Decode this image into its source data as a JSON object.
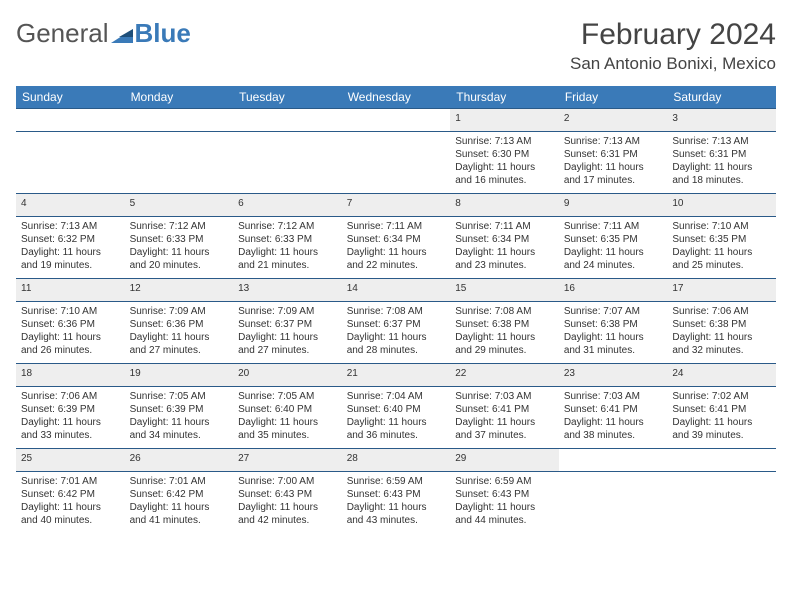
{
  "brand": {
    "part1": "General",
    "part2": "Blue"
  },
  "title": "February 2024",
  "location": "San Antonio Bonixi, Mexico",
  "colors": {
    "header_bg": "#3a7ab8",
    "header_text": "#ffffff",
    "daynum_bg": "#eeeeee",
    "border": "#2a5a88",
    "logo_blue": "#3a7ab8"
  },
  "weekdays": [
    "Sunday",
    "Monday",
    "Tuesday",
    "Wednesday",
    "Thursday",
    "Friday",
    "Saturday"
  ],
  "weeks": [
    {
      "nums": [
        "",
        "",
        "",
        "",
        "1",
        "2",
        "3"
      ],
      "cells": [
        null,
        null,
        null,
        null,
        {
          "sr": "Sunrise: 7:13 AM",
          "ss": "Sunset: 6:30 PM",
          "d1": "Daylight: 11 hours",
          "d2": "and 16 minutes."
        },
        {
          "sr": "Sunrise: 7:13 AM",
          "ss": "Sunset: 6:31 PM",
          "d1": "Daylight: 11 hours",
          "d2": "and 17 minutes."
        },
        {
          "sr": "Sunrise: 7:13 AM",
          "ss": "Sunset: 6:31 PM",
          "d1": "Daylight: 11 hours",
          "d2": "and 18 minutes."
        }
      ]
    },
    {
      "nums": [
        "4",
        "5",
        "6",
        "7",
        "8",
        "9",
        "10"
      ],
      "cells": [
        {
          "sr": "Sunrise: 7:13 AM",
          "ss": "Sunset: 6:32 PM",
          "d1": "Daylight: 11 hours",
          "d2": "and 19 minutes."
        },
        {
          "sr": "Sunrise: 7:12 AM",
          "ss": "Sunset: 6:33 PM",
          "d1": "Daylight: 11 hours",
          "d2": "and 20 minutes."
        },
        {
          "sr": "Sunrise: 7:12 AM",
          "ss": "Sunset: 6:33 PM",
          "d1": "Daylight: 11 hours",
          "d2": "and 21 minutes."
        },
        {
          "sr": "Sunrise: 7:11 AM",
          "ss": "Sunset: 6:34 PM",
          "d1": "Daylight: 11 hours",
          "d2": "and 22 minutes."
        },
        {
          "sr": "Sunrise: 7:11 AM",
          "ss": "Sunset: 6:34 PM",
          "d1": "Daylight: 11 hours",
          "d2": "and 23 minutes."
        },
        {
          "sr": "Sunrise: 7:11 AM",
          "ss": "Sunset: 6:35 PM",
          "d1": "Daylight: 11 hours",
          "d2": "and 24 minutes."
        },
        {
          "sr": "Sunrise: 7:10 AM",
          "ss": "Sunset: 6:35 PM",
          "d1": "Daylight: 11 hours",
          "d2": "and 25 minutes."
        }
      ]
    },
    {
      "nums": [
        "11",
        "12",
        "13",
        "14",
        "15",
        "16",
        "17"
      ],
      "cells": [
        {
          "sr": "Sunrise: 7:10 AM",
          "ss": "Sunset: 6:36 PM",
          "d1": "Daylight: 11 hours",
          "d2": "and 26 minutes."
        },
        {
          "sr": "Sunrise: 7:09 AM",
          "ss": "Sunset: 6:36 PM",
          "d1": "Daylight: 11 hours",
          "d2": "and 27 minutes."
        },
        {
          "sr": "Sunrise: 7:09 AM",
          "ss": "Sunset: 6:37 PM",
          "d1": "Daylight: 11 hours",
          "d2": "and 27 minutes."
        },
        {
          "sr": "Sunrise: 7:08 AM",
          "ss": "Sunset: 6:37 PM",
          "d1": "Daylight: 11 hours",
          "d2": "and 28 minutes."
        },
        {
          "sr": "Sunrise: 7:08 AM",
          "ss": "Sunset: 6:38 PM",
          "d1": "Daylight: 11 hours",
          "d2": "and 29 minutes."
        },
        {
          "sr": "Sunrise: 7:07 AM",
          "ss": "Sunset: 6:38 PM",
          "d1": "Daylight: 11 hours",
          "d2": "and 31 minutes."
        },
        {
          "sr": "Sunrise: 7:06 AM",
          "ss": "Sunset: 6:38 PM",
          "d1": "Daylight: 11 hours",
          "d2": "and 32 minutes."
        }
      ]
    },
    {
      "nums": [
        "18",
        "19",
        "20",
        "21",
        "22",
        "23",
        "24"
      ],
      "cells": [
        {
          "sr": "Sunrise: 7:06 AM",
          "ss": "Sunset: 6:39 PM",
          "d1": "Daylight: 11 hours",
          "d2": "and 33 minutes."
        },
        {
          "sr": "Sunrise: 7:05 AM",
          "ss": "Sunset: 6:39 PM",
          "d1": "Daylight: 11 hours",
          "d2": "and 34 minutes."
        },
        {
          "sr": "Sunrise: 7:05 AM",
          "ss": "Sunset: 6:40 PM",
          "d1": "Daylight: 11 hours",
          "d2": "and 35 minutes."
        },
        {
          "sr": "Sunrise: 7:04 AM",
          "ss": "Sunset: 6:40 PM",
          "d1": "Daylight: 11 hours",
          "d2": "and 36 minutes."
        },
        {
          "sr": "Sunrise: 7:03 AM",
          "ss": "Sunset: 6:41 PM",
          "d1": "Daylight: 11 hours",
          "d2": "and 37 minutes."
        },
        {
          "sr": "Sunrise: 7:03 AM",
          "ss": "Sunset: 6:41 PM",
          "d1": "Daylight: 11 hours",
          "d2": "and 38 minutes."
        },
        {
          "sr": "Sunrise: 7:02 AM",
          "ss": "Sunset: 6:41 PM",
          "d1": "Daylight: 11 hours",
          "d2": "and 39 minutes."
        }
      ]
    },
    {
      "nums": [
        "25",
        "26",
        "27",
        "28",
        "29",
        "",
        ""
      ],
      "cells": [
        {
          "sr": "Sunrise: 7:01 AM",
          "ss": "Sunset: 6:42 PM",
          "d1": "Daylight: 11 hours",
          "d2": "and 40 minutes."
        },
        {
          "sr": "Sunrise: 7:01 AM",
          "ss": "Sunset: 6:42 PM",
          "d1": "Daylight: 11 hours",
          "d2": "and 41 minutes."
        },
        {
          "sr": "Sunrise: 7:00 AM",
          "ss": "Sunset: 6:43 PM",
          "d1": "Daylight: 11 hours",
          "d2": "and 42 minutes."
        },
        {
          "sr": "Sunrise: 6:59 AM",
          "ss": "Sunset: 6:43 PM",
          "d1": "Daylight: 11 hours",
          "d2": "and 43 minutes."
        },
        {
          "sr": "Sunrise: 6:59 AM",
          "ss": "Sunset: 6:43 PM",
          "d1": "Daylight: 11 hours",
          "d2": "and 44 minutes."
        },
        null,
        null
      ]
    }
  ]
}
